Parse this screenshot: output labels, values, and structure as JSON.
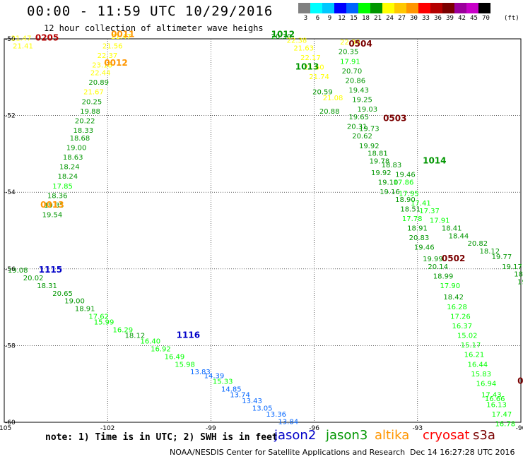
{
  "header": {
    "title": "00:00 - 11:59 UTC 10/29/2016",
    "subtitle": "12 hour collection of altimeter wave heighs"
  },
  "colorbar": {
    "colors": [
      "#808080",
      "#00ffff",
      "#00c8ff",
      "#0000ff",
      "#0064ff",
      "#00ff00",
      "#009600",
      "#ffff00",
      "#ffc800",
      "#ff9600",
      "#ff0000",
      "#b40000",
      "#7a0000",
      "#9b009b",
      "#c800c8",
      "#000000"
    ],
    "ticks": [
      "3",
      "6",
      "9",
      "12",
      "15",
      "18",
      "21",
      "24",
      "27",
      "30",
      "33",
      "36",
      "39",
      "42",
      "45",
      "70"
    ],
    "unit": "(ft)"
  },
  "axes": {
    "lat_labels": [
      "-50",
      "-52",
      "-54",
      "-56",
      "-58",
      "-60"
    ],
    "lon_labels": [
      "-105",
      "-102",
      "-99",
      "-96",
      "-93",
      "-90"
    ]
  },
  "footer": {
    "note": "note: 1) Time is in UTC; 2) SWH is in feet",
    "satellites": [
      {
        "name": "jason2",
        "color": "#0000c8"
      },
      {
        "name": "jason3",
        "color": "#009600"
      },
      {
        "name": "altika",
        "color": "#ff9600"
      },
      {
        "name": "cryosat",
        "color": "#ff0000"
      },
      {
        "name": "s3a",
        "color": "#7a0000"
      }
    ],
    "credit": "NOAA/NESDIS Center for Satellite Applications and Research",
    "timestamp": "Dec 14 16:27:28 UTC 2016"
  },
  "time_labels": [
    {
      "text": "0205",
      "lon": -104.1,
      "lat": -50.05,
      "color": "#b40000"
    },
    {
      "text": "0011",
      "lon": -101.9,
      "lat": -49.95,
      "color": "#ff9600"
    },
    {
      "text": "0012",
      "lon": -102.1,
      "lat": -50.7,
      "color": "#ff9600"
    },
    {
      "text": "0013",
      "lon": -103.95,
      "lat": -54.4,
      "color": "#ff9600"
    },
    {
      "text": "1012",
      "lon": -97.25,
      "lat": -49.95,
      "color": "#009600"
    },
    {
      "text": "1013",
      "lon": -96.55,
      "lat": -50.8,
      "color": "#009600"
    },
    {
      "text": "0504",
      "lon": -95.0,
      "lat": -50.2,
      "color": "#7a0000"
    },
    {
      "text": "0503",
      "lon": -94.0,
      "lat": -52.15,
      "color": "#7a0000"
    },
    {
      "text": "1014",
      "lon": -92.85,
      "lat": -53.25,
      "color": "#009600"
    },
    {
      "text": "0502",
      "lon": -92.3,
      "lat": -55.8,
      "color": "#7a0000"
    },
    {
      "text": "1115",
      "lon": -104.0,
      "lat": -56.1,
      "color": "#0000c8"
    },
    {
      "text": "1116",
      "lon": -100.0,
      "lat": -57.8,
      "color": "#0000c8"
    },
    {
      "text": "05",
      "lon": -90.1,
      "lat": -59.0,
      "color": "#7a0000"
    }
  ],
  "tracks": [
    {
      "satellite": "altika",
      "points": [
        {
          "lon": -104.8,
          "lat": -50.05,
          "swh": "21.47"
        },
        {
          "lon": -104.75,
          "lat": -50.25,
          "swh": "21.41"
        }
      ]
    },
    {
      "satellite": "altika/jason3",
      "points": [
        {
          "lon": -101.9,
          "lat": -50.0,
          "swh": "21.47"
        },
        {
          "lon": -102.15,
          "lat": -50.25,
          "swh": "21.56"
        },
        {
          "lon": -102.3,
          "lat": -50.5,
          "swh": "22.37"
        },
        {
          "lon": -102.45,
          "lat": -50.75,
          "swh": "23.18"
        },
        {
          "lon": -102.5,
          "lat": -50.95,
          "swh": "22.44"
        },
        {
          "lon": -102.55,
          "lat": -51.2,
          "swh": "20.89"
        },
        {
          "lon": -102.7,
          "lat": -51.45,
          "swh": "21.67"
        },
        {
          "lon": -102.75,
          "lat": -51.7,
          "swh": "20.25"
        },
        {
          "lon": -102.8,
          "lat": -51.95,
          "swh": "19.88"
        },
        {
          "lon": -102.95,
          "lat": -52.2,
          "swh": "20.22"
        },
        {
          "lon": -103.0,
          "lat": -52.45,
          "swh": "18.33"
        },
        {
          "lon": -103.1,
          "lat": -52.65,
          "swh": "18.68"
        },
        {
          "lon": -103.2,
          "lat": -52.9,
          "swh": "19.00"
        },
        {
          "lon": -103.3,
          "lat": -53.15,
          "swh": "18.63"
        },
        {
          "lon": -103.4,
          "lat": -53.4,
          "swh": "18.24"
        },
        {
          "lon": -103.45,
          "lat": -53.65,
          "swh": "18.24"
        },
        {
          "lon": -103.6,
          "lat": -53.9,
          "swh": "17.85"
        },
        {
          "lon": -103.75,
          "lat": -54.15,
          "swh": "18.36"
        },
        {
          "lon": -103.85,
          "lat": -54.4,
          "swh": "19.35"
        },
        {
          "lon": -103.9,
          "lat": -54.65,
          "swh": "19.54"
        }
      ]
    },
    {
      "satellite": "jason3",
      "points": [
        {
          "lon": -97.25,
          "lat": -50.0,
          "swh": "20.30"
        },
        {
          "lon": -96.8,
          "lat": -50.1,
          "swh": "22.38"
        },
        {
          "lon": -96.6,
          "lat": -50.3,
          "swh": "21.63"
        },
        {
          "lon": -96.4,
          "lat": -50.55,
          "swh": "22.17"
        },
        {
          "lon": -96.3,
          "lat": -50.8,
          "swh": "21.60"
        },
        {
          "lon": -96.15,
          "lat": -51.05,
          "swh": "21.74"
        },
        {
          "lon": -96.05,
          "lat": -51.45,
          "swh": "20.59"
        },
        {
          "lon": -95.75,
          "lat": -51.6,
          "swh": "21.08"
        },
        {
          "lon": -95.85,
          "lat": -51.95,
          "swh": "20.88"
        },
        {
          "lon": -95.0,
          "lat": -52.1,
          "swh": "19.65"
        },
        {
          "lon": -95.05,
          "lat": -52.35,
          "swh": "20.31"
        },
        {
          "lon": -94.7,
          "lat": -52.4,
          "swh": "19.73"
        },
        {
          "lon": -94.9,
          "lat": -52.6,
          "swh": "20.62"
        },
        {
          "lon": -94.7,
          "lat": -52.85,
          "swh": "19.92"
        },
        {
          "lon": -94.45,
          "lat": -53.05,
          "swh": "18.81"
        },
        {
          "lon": -94.4,
          "lat": -53.25,
          "swh": "19.78"
        },
        {
          "lon": -94.05,
          "lat": -53.35,
          "swh": "18.83"
        },
        {
          "lon": -94.35,
          "lat": -53.55,
          "swh": "19.92"
        },
        {
          "lon": -93.65,
          "lat": -53.6,
          "swh": "19.46"
        },
        {
          "lon": -94.15,
          "lat": -53.8,
          "swh": "19.10"
        },
        {
          "lon": -93.7,
          "lat": -53.8,
          "swh": "17.86"
        },
        {
          "lon": -94.1,
          "lat": -54.05,
          "swh": "19.16"
        },
        {
          "lon": -93.65,
          "lat": -54.25,
          "swh": "18.90"
        },
        {
          "lon": -93.5,
          "lat": -54.5,
          "swh": "18.51"
        },
        {
          "lon": -93.45,
          "lat": -54.75,
          "swh": "17.78"
        },
        {
          "lon": -93.3,
          "lat": -55.0,
          "swh": "18.91"
        },
        {
          "lon": -93.25,
          "lat": -55.25,
          "swh": "20.83"
        },
        {
          "lon": -93.1,
          "lat": -55.5,
          "swh": "19.46"
        },
        {
          "lon": -92.85,
          "lat": -55.8,
          "swh": "19.99"
        },
        {
          "lon": -92.7,
          "lat": -56.0,
          "swh": "20.14"
        },
        {
          "lon": -92.55,
          "lat": -56.25,
          "swh": "18.99"
        },
        {
          "lon": -92.35,
          "lat": -56.5,
          "swh": "17.90"
        },
        {
          "lon": -92.25,
          "lat": -56.8,
          "swh": "18.42"
        },
        {
          "lon": -92.15,
          "lat": -57.05,
          "swh": "16.28"
        },
        {
          "lon": -92.05,
          "lat": -57.3,
          "swh": "17.26"
        },
        {
          "lon": -92.0,
          "lat": -57.55,
          "swh": "16.37"
        },
        {
          "lon": -91.85,
          "lat": -57.8,
          "swh": "15.02"
        },
        {
          "lon": -91.75,
          "lat": -58.05,
          "swh": "15.17"
        },
        {
          "lon": -91.65,
          "lat": -58.3,
          "swh": "16.21"
        },
        {
          "lon": -91.55,
          "lat": -58.55,
          "swh": "16.44"
        },
        {
          "lon": -91.45,
          "lat": -58.8,
          "swh": "15.83"
        },
        {
          "lon": -91.3,
          "lat": -59.05,
          "swh": "16.94"
        },
        {
          "lon": -91.15,
          "lat": -59.35,
          "swh": "17.43"
        },
        {
          "lon": -91.05,
          "lat": -59.45,
          "swh": "16.66"
        },
        {
          "lon": -91.0,
          "lat": -59.6,
          "swh": "16.13"
        },
        {
          "lon": -90.85,
          "lat": -59.85,
          "swh": "17.47"
        },
        {
          "lon": -90.75,
          "lat": -60.1,
          "swh": "16.78"
        },
        {
          "lon": -90.5,
          "lat": -60.4,
          "swh": "17.29"
        },
        {
          "lon": -90.45,
          "lat": -60.6,
          "swh": "17.3"
        }
      ]
    },
    {
      "satellite": "jason3",
      "points": [
        {
          "lon": -95.25,
          "lat": -50.15,
          "swh": "22.30"
        },
        {
          "lon": -95.3,
          "lat": -50.4,
          "swh": "20.35"
        },
        {
          "lon": -95.25,
          "lat": -50.65,
          "swh": "17.91"
        },
        {
          "lon": -95.2,
          "lat": -50.9,
          "swh": "20.70"
        },
        {
          "lon": -95.1,
          "lat": -51.15,
          "swh": "20.86"
        },
        {
          "lon": -95.0,
          "lat": -51.4,
          "swh": "19.43"
        },
        {
          "lon": -94.9,
          "lat": -51.65,
          "swh": "19.25"
        },
        {
          "lon": -94.75,
          "lat": -51.9,
          "swh": "19.03"
        }
      ]
    },
    {
      "satellite": "jason3",
      "points": [
        {
          "lon": -93.55,
          "lat": -54.1,
          "swh": "17.95"
        },
        {
          "lon": -93.2,
          "lat": -54.35,
          "swh": "17.41"
        },
        {
          "lon": -92.95,
          "lat": -54.55,
          "swh": "17.37"
        },
        {
          "lon": -92.65,
          "lat": -54.8,
          "swh": "17.91"
        },
        {
          "lon": -92.3,
          "lat": -55.0,
          "swh": "18.41"
        },
        {
          "lon": -92.1,
          "lat": -55.2,
          "swh": "18.44"
        },
        {
          "lon": -91.55,
          "lat": -55.4,
          "swh": "20.82"
        },
        {
          "lon": -91.2,
          "lat": -55.6,
          "swh": "18.12"
        },
        {
          "lon": -90.85,
          "lat": -55.75,
          "swh": "19.77"
        },
        {
          "lon": -90.55,
          "lat": -56.0,
          "swh": "19.17"
        },
        {
          "lon": -90.2,
          "lat": -56.2,
          "swh": "18.82"
        },
        {
          "lon": -90.1,
          "lat": -56.4,
          "swh": "19.3"
        }
      ]
    },
    {
      "satellite": "jason3",
      "points": [
        {
          "lon": -104.9,
          "lat": -56.1,
          "swh": "19.08"
        },
        {
          "lon": -104.45,
          "lat": -56.3,
          "swh": "20.02"
        },
        {
          "lon": -104.05,
          "lat": -56.5,
          "swh": "18.31"
        },
        {
          "lon": -103.6,
          "lat": -56.7,
          "swh": "20.65"
        },
        {
          "lon": -103.25,
          "lat": -56.9,
          "swh": "19.00"
        },
        {
          "lon": -102.95,
          "lat": -57.1,
          "swh": "18.91"
        },
        {
          "lon": -102.55,
          "lat": -57.3,
          "swh": "17.62"
        },
        {
          "lon": -102.4,
          "lat": -57.45,
          "swh": "15.99"
        },
        {
          "lon": -101.85,
          "lat": -57.65,
          "swh": "16.29"
        },
        {
          "lon": -101.5,
          "lat": -57.8,
          "swh": "18.12"
        },
        {
          "lon": -101.05,
          "lat": -57.95,
          "swh": "16.40"
        },
        {
          "lon": -100.75,
          "lat": -58.15,
          "swh": "16.92"
        },
        {
          "lon": -100.35,
          "lat": -58.35,
          "swh": "16.49"
        },
        {
          "lon": -100.05,
          "lat": -58.55,
          "swh": "15.98"
        },
        {
          "lon": -99.6,
          "lat": -58.75,
          "swh": "13.83"
        },
        {
          "lon": -99.2,
          "lat": -58.85,
          "swh": "14.39"
        },
        {
          "lon": -98.95,
          "lat": -59.0,
          "swh": "15.33"
        },
        {
          "lon": -98.7,
          "lat": -59.2,
          "swh": "14.85"
        },
        {
          "lon": -98.45,
          "lat": -59.35,
          "swh": "13.74"
        },
        {
          "lon": -98.1,
          "lat": -59.5,
          "swh": "13.43"
        },
        {
          "lon": -97.8,
          "lat": -59.7,
          "swh": "13.05"
        },
        {
          "lon": -97.4,
          "lat": -59.85,
          "swh": "13.36"
        },
        {
          "lon": -97.05,
          "lat": -60.05,
          "swh": "13.84"
        },
        {
          "lon": -96.65,
          "lat": -60.25,
          "swh": "13.51"
        },
        {
          "lon": -96.3,
          "lat": -60.45,
          "swh": "14.05"
        },
        {
          "lon": -95.9,
          "lat": -60.65,
          "swh": "11.86"
        },
        {
          "lon": -95.6,
          "lat": -60.8,
          "swh": "11.98"
        },
        {
          "lon": -95.35,
          "lat": -61.0,
          "swh": "11.27"
        }
      ]
    }
  ]
}
